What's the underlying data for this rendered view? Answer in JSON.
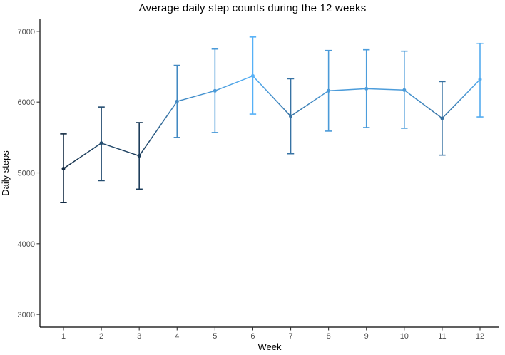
{
  "chart_data": {
    "type": "line",
    "title": "Average daily step counts during the 12 weeks",
    "xlabel": "Week",
    "ylabel": "Daily steps",
    "x": [
      1,
      2,
      3,
      4,
      5,
      6,
      7,
      8,
      9,
      10,
      11,
      12
    ],
    "series": [
      {
        "name": "average_daily_steps",
        "values": [
          5060,
          5420,
          5240,
          6010,
          6160,
          6370,
          5800,
          6160,
          6190,
          6170,
          5770,
          6320
        ],
        "error_low": [
          4580,
          4890,
          4770,
          5500,
          5570,
          5830,
          5270,
          5590,
          5640,
          5630,
          5250,
          5790
        ],
        "error_high": [
          5550,
          5930,
          5710,
          6520,
          6750,
          6920,
          6330,
          6730,
          6740,
          6720,
          6290,
          6830
        ]
      }
    ],
    "xticks": [
      "1",
      "2",
      "3",
      "4",
      "5",
      "6",
      "7",
      "8",
      "9",
      "10",
      "11",
      "12"
    ],
    "yticks": [
      3000,
      4000,
      5000,
      6000,
      7000
    ],
    "ylim": [
      2820,
      7170
    ],
    "xlim": [
      1,
      12
    ],
    "grid": false,
    "legend": "none",
    "error_bars": true,
    "color_scale": {
      "type": "gradient_by_value",
      "low": "#132B43",
      "high": "#56B1F7",
      "domain": [
        5060,
        6370
      ]
    },
    "background_color": "#FFFFFF",
    "axis_line_color": "#000000",
    "tick_mark_color": "#333333",
    "tick_label_color": "#4D4D4D",
    "title_color": "#000000"
  }
}
